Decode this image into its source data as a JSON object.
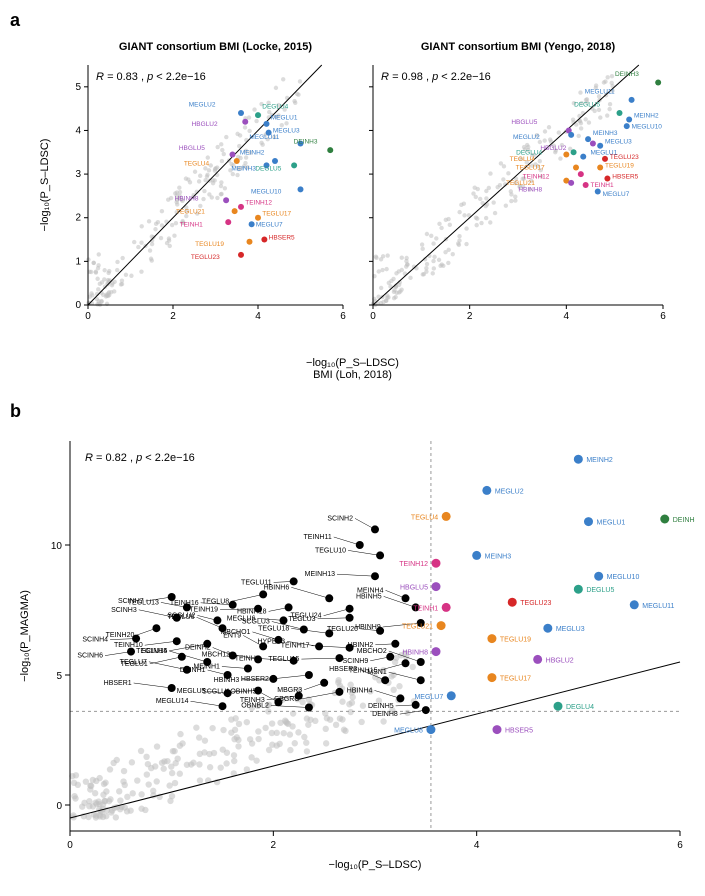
{
  "panel_a": {
    "label": "a",
    "shared_x_label": "BMI (Loh, 2018)",
    "shared_x_axis_math": "−log₁₀(P_S–LDSC)",
    "y_axis_math": "−log₁₀(P_S–LDSC)",
    "left": {
      "title": "GIANT consortium BMI (Locke, 2015)",
      "corr_R": "R = 0.83",
      "corr_p": "p < 2.2e−16",
      "xlim": [
        0,
        6
      ],
      "ylim": [
        0,
        5.5
      ],
      "xticks": [
        0,
        2,
        4,
        6
      ],
      "yticks": [
        0,
        1,
        2,
        3,
        4,
        5
      ],
      "bg_n": 180
    },
    "right": {
      "title": "GIANT consortium BMI (Yengo, 2018)",
      "corr_R": "R = 0.98",
      "corr_p": "p < 2.2e−16",
      "xlim": [
        0,
        6
      ],
      "ylim": [
        0,
        5.5
      ],
      "xticks": [
        0,
        2,
        4,
        6
      ],
      "yticks": [
        0,
        1,
        2,
        3,
        4,
        5
      ],
      "bg_n": 180
    },
    "colors": {
      "DE": "#2f7f3f",
      "ME": "#3b7fc9",
      "HB": "#9b4fbd",
      "TE": "#e8861f",
      "TEINH": "#d63384",
      "HBSER": "#d62728",
      "TEGLU_red": "#d62728"
    },
    "left_points": [
      {
        "l": "MEGLU2",
        "x": 3.6,
        "y": 4.4,
        "c": "#3b7fc9",
        "lx": 3.0,
        "ly": 4.55
      },
      {
        "l": "DEGLU4",
        "x": 4.0,
        "y": 4.35,
        "c": "#2ca089",
        "lx": 4.1,
        "ly": 4.5
      },
      {
        "l": "HBGLU2",
        "x": 3.7,
        "y": 4.2,
        "c": "#9b4fbd",
        "lx": 3.05,
        "ly": 4.1
      },
      {
        "l": "MEGLU1",
        "x": 4.2,
        "y": 4.15,
        "c": "#3b7fc9",
        "lx": 4.3,
        "ly": 4.25
      },
      {
        "l": "MEGLU3",
        "x": 4.25,
        "y": 3.95,
        "c": "#3b7fc9",
        "lx": 4.35,
        "ly": 3.95
      },
      {
        "l": "MEGLU11",
        "x": 5.0,
        "y": 3.7,
        "c": "#3b7fc9",
        "lx": 4.5,
        "ly": 3.8
      },
      {
        "l": "DEINH3",
        "x": 5.7,
        "y": 3.55,
        "c": "#2f7f3f",
        "lx": 5.4,
        "ly": 3.7
      },
      {
        "l": "HBGLU5",
        "x": 3.4,
        "y": 3.45,
        "c": "#9b4fbd",
        "lx": 2.75,
        "ly": 3.55
      },
      {
        "l": "TEGLU4",
        "x": 3.5,
        "y": 3.3,
        "c": "#e8861f",
        "lx": 2.85,
        "ly": 3.2
      },
      {
        "l": "MEINH2",
        "x": 4.4,
        "y": 3.3,
        "c": "#3b7fc9",
        "lx": 4.15,
        "ly": 3.45
      },
      {
        "l": "MEINH3",
        "x": 4.2,
        "y": 3.2,
        "c": "#3b7fc9",
        "lx": 3.95,
        "ly": 3.08
      },
      {
        "l": "DEGLU5",
        "x": 4.85,
        "y": 3.2,
        "c": "#2ca089",
        "lx": 4.55,
        "ly": 3.08
      },
      {
        "l": "MEGLU10",
        "x": 5.0,
        "y": 2.65,
        "c": "#3b7fc9",
        "lx": 4.55,
        "ly": 2.55
      },
      {
        "l": "HBINH8",
        "x": 3.25,
        "y": 2.4,
        "c": "#9b4fbd",
        "lx": 2.6,
        "ly": 2.4
      },
      {
        "l": "TEINH12",
        "x": 3.6,
        "y": 2.25,
        "c": "#d63384",
        "lx": 3.7,
        "ly": 2.3
      },
      {
        "l": "TEGLU21",
        "x": 3.45,
        "y": 2.15,
        "c": "#e8861f",
        "lx": 2.75,
        "ly": 2.1
      },
      {
        "l": "TEGLU17",
        "x": 4.0,
        "y": 2.0,
        "c": "#e8861f",
        "lx": 4.1,
        "ly": 2.05
      },
      {
        "l": "MEGLU7",
        "x": 3.85,
        "y": 1.85,
        "c": "#3b7fc9",
        "lx": 3.95,
        "ly": 1.8
      },
      {
        "l": "TEINH1",
        "x": 3.3,
        "y": 1.9,
        "c": "#d63384",
        "lx": 2.7,
        "ly": 1.8
      },
      {
        "l": "HBSER5",
        "x": 4.15,
        "y": 1.5,
        "c": "#d62728",
        "lx": 4.25,
        "ly": 1.5
      },
      {
        "l": "TEGLU19",
        "x": 3.8,
        "y": 1.45,
        "c": "#e8861f",
        "lx": 3.2,
        "ly": 1.35
      },
      {
        "l": "TEGLU23",
        "x": 3.6,
        "y": 1.15,
        "c": "#d62728",
        "lx": 3.1,
        "ly": 1.05
      }
    ],
    "right_points": [
      {
        "l": "DEINH3",
        "x": 5.9,
        "y": 5.1,
        "c": "#2f7f3f",
        "lx": 5.5,
        "ly": 5.25
      },
      {
        "l": "MEGLU11",
        "x": 5.35,
        "y": 4.7,
        "c": "#3b7fc9",
        "lx": 5.0,
        "ly": 4.85
      },
      {
        "l": "DEGLU5",
        "x": 5.1,
        "y": 4.4,
        "c": "#2ca089",
        "lx": 4.7,
        "ly": 4.55
      },
      {
        "l": "MEINH2",
        "x": 5.3,
        "y": 4.25,
        "c": "#3b7fc9",
        "lx": 5.4,
        "ly": 4.3
      },
      {
        "l": "MEGLU10",
        "x": 5.25,
        "y": 4.1,
        "c": "#3b7fc9",
        "lx": 5.35,
        "ly": 4.05
      },
      {
        "l": "HBGLU5",
        "x": 4.05,
        "y": 4.0,
        "c": "#9b4fbd",
        "lx": 3.4,
        "ly": 4.15
      },
      {
        "l": "MEGLU2",
        "x": 4.1,
        "y": 3.9,
        "c": "#3b7fc9",
        "lx": 3.45,
        "ly": 3.8
      },
      {
        "l": "MEINH3",
        "x": 4.45,
        "y": 3.8,
        "c": "#3b7fc9",
        "lx": 4.55,
        "ly": 3.9
      },
      {
        "l": "HBGLU2",
        "x": 4.55,
        "y": 3.7,
        "c": "#9b4fbd",
        "lx": 4.0,
        "ly": 3.55
      },
      {
        "l": "MEGLU3",
        "x": 4.7,
        "y": 3.65,
        "c": "#3b7fc9",
        "lx": 4.8,
        "ly": 3.7
      },
      {
        "l": "DEGLU4",
        "x": 4.15,
        "y": 3.5,
        "c": "#2ca089",
        "lx": 3.5,
        "ly": 3.45
      },
      {
        "l": "TEGLU4",
        "x": 4.0,
        "y": 3.45,
        "c": "#e8861f",
        "lx": 3.35,
        "ly": 3.3
      },
      {
        "l": "MEGLU1",
        "x": 4.35,
        "y": 3.4,
        "c": "#3b7fc9",
        "lx": 4.5,
        "ly": 3.45
      },
      {
        "l": "TEGLU23",
        "x": 4.8,
        "y": 3.35,
        "c": "#d62728",
        "lx": 4.9,
        "ly": 3.35
      },
      {
        "l": "TEGLU17",
        "x": 4.2,
        "y": 3.15,
        "c": "#e8861f",
        "lx": 3.55,
        "ly": 3.1
      },
      {
        "l": "TEGLU19",
        "x": 4.7,
        "y": 3.15,
        "c": "#e8861f",
        "lx": 4.8,
        "ly": 3.15
      },
      {
        "l": "TEINH12",
        "x": 4.3,
        "y": 3.0,
        "c": "#d63384",
        "lx": 3.65,
        "ly": 2.9
      },
      {
        "l": "HBSER5",
        "x": 4.85,
        "y": 2.9,
        "c": "#d62728",
        "lx": 4.95,
        "ly": 2.9
      },
      {
        "l": "TEGLU21",
        "x": 4.0,
        "y": 2.85,
        "c": "#e8861f",
        "lx": 3.35,
        "ly": 2.75
      },
      {
        "l": "HBINH8",
        "x": 4.1,
        "y": 2.8,
        "c": "#9b4fbd",
        "lx": 3.5,
        "ly": 2.6
      },
      {
        "l": "TEINH1",
        "x": 4.4,
        "y": 2.75,
        "c": "#d63384",
        "lx": 4.5,
        "ly": 2.7
      },
      {
        "l": "MEGLU7",
        "x": 4.65,
        "y": 2.6,
        "c": "#3b7fc9",
        "lx": 4.75,
        "ly": 2.5
      }
    ]
  },
  "panel_b": {
    "label": "b",
    "x_axis_math": "−log₁₀(P_S–LDSC)",
    "y_axis_math": "−log₁₀(P_MAGMA)",
    "corr_R": "R = 0.82",
    "corr_p": "p < 2.2e−16",
    "xlim": [
      0,
      6
    ],
    "ylim": [
      -1,
      14
    ],
    "xticks": [
      0,
      2,
      4,
      6
    ],
    "yticks": [
      0,
      5,
      10
    ],
    "vthresh": 3.55,
    "hthresh": 3.6,
    "bg_n": 200,
    "colored_points": [
      {
        "l": "MEINH2",
        "x": 5.0,
        "y": 13.3,
        "c": "#3b7fc9",
        "lp": "r"
      },
      {
        "l": "MEGLU2",
        "x": 4.1,
        "y": 12.1,
        "c": "#3b7fc9",
        "lp": "r"
      },
      {
        "l": "DEINH3",
        "x": 5.85,
        "y": 11.0,
        "c": "#2f7f3f",
        "lp": "r"
      },
      {
        "l": "TEGLU4",
        "x": 3.7,
        "y": 11.1,
        "c": "#e8861f",
        "lp": "l"
      },
      {
        "l": "MEGLU1",
        "x": 5.1,
        "y": 10.9,
        "c": "#3b7fc9",
        "lp": "r"
      },
      {
        "l": "MEINH3",
        "x": 4.0,
        "y": 9.6,
        "c": "#3b7fc9",
        "lp": "r"
      },
      {
        "l": "TEINH12",
        "x": 3.6,
        "y": 9.3,
        "c": "#d63384",
        "lp": "l"
      },
      {
        "l": "MEGLU10",
        "x": 5.2,
        "y": 8.8,
        "c": "#3b7fc9",
        "lp": "r"
      },
      {
        "l": "DEGLU5",
        "x": 5.0,
        "y": 8.3,
        "c": "#2ca089",
        "lp": "r"
      },
      {
        "l": "HBGLU5",
        "x": 3.6,
        "y": 8.4,
        "c": "#9b4fbd",
        "lp": "l"
      },
      {
        "l": "MEGLU11",
        "x": 5.55,
        "y": 7.7,
        "c": "#3b7fc9",
        "lp": "r"
      },
      {
        "l": "TEGLU23",
        "x": 4.35,
        "y": 7.8,
        "c": "#d62728",
        "lp": "r"
      },
      {
        "l": "TEINH1",
        "x": 3.7,
        "y": 7.6,
        "c": "#d63384",
        "lp": "l"
      },
      {
        "l": "TEGLU21",
        "x": 3.65,
        "y": 6.9,
        "c": "#e8861f",
        "lp": "l"
      },
      {
        "l": "MEGLU3",
        "x": 4.7,
        "y": 6.8,
        "c": "#3b7fc9",
        "lp": "r"
      },
      {
        "l": "TEGLU19",
        "x": 4.15,
        "y": 6.4,
        "c": "#e8861f",
        "lp": "r"
      },
      {
        "l": "HBINH8",
        "x": 3.6,
        "y": 5.9,
        "c": "#9b4fbd",
        "lp": "l"
      },
      {
        "l": "HBGLU2",
        "x": 4.6,
        "y": 5.6,
        "c": "#9b4fbd",
        "lp": "r"
      },
      {
        "l": "TEGLU17",
        "x": 4.15,
        "y": 4.9,
        "c": "#e8861f",
        "lp": "r"
      },
      {
        "l": "MEGLU7",
        "x": 3.75,
        "y": 4.2,
        "c": "#3b7fc9",
        "lp": "l"
      },
      {
        "l": "DEGLU4",
        "x": 4.8,
        "y": 3.8,
        "c": "#2ca089",
        "lp": "r"
      },
      {
        "l": "HBSER5",
        "x": 4.2,
        "y": 2.9,
        "c": "#9b4fbd",
        "lp": "r"
      },
      {
        "l": "MEGLU8",
        "x": 3.55,
        "y": 2.9,
        "c": "#3b7fc9",
        "lp": "l"
      }
    ],
    "black_points": [
      {
        "l": "SCINH2",
        "x": 3.0,
        "y": 10.6
      },
      {
        "l": "TEINH11",
        "x": 2.85,
        "y": 10.0
      },
      {
        "l": "TEGLU10",
        "x": 3.05,
        "y": 9.6
      },
      {
        "l": "MEINH13",
        "x": 3.0,
        "y": 8.8
      },
      {
        "l": "TEGLU11",
        "x": 2.2,
        "y": 8.6
      },
      {
        "l": "SCINH7",
        "x": 1.0,
        "y": 8.0
      },
      {
        "l": "TEGLU8",
        "x": 1.9,
        "y": 8.1
      },
      {
        "l": "HBINH6",
        "x": 2.55,
        "y": 7.95
      },
      {
        "l": "MEINH4",
        "x": 3.3,
        "y": 7.95
      },
      {
        "l": "TEGLU13",
        "x": 1.15,
        "y": 7.6
      },
      {
        "l": "TEINH16",
        "x": 1.6,
        "y": 7.7
      },
      {
        "l": "TEINH19",
        "x": 1.85,
        "y": 7.55
      },
      {
        "l": "HBINH18",
        "x": 2.15,
        "y": 7.6
      },
      {
        "l": "TEGLU24",
        "x": 2.75,
        "y": 7.55
      },
      {
        "l": "HBINH5",
        "x": 3.4,
        "y": 7.6
      },
      {
        "l": "SCINH3",
        "x": 1.05,
        "y": 7.2
      },
      {
        "l": "SCGLU2",
        "x": 1.45,
        "y": 7.1
      },
      {
        "l": "MEGLU6",
        "x": 2.1,
        "y": 7.1
      },
      {
        "l": "TEGLU3",
        "x": 2.75,
        "y": 7.2
      },
      {
        "l": "HBINH9",
        "x": 3.45,
        "y": 7.0
      },
      {
        "l": "TEINH20",
        "x": 0.85,
        "y": 6.8
      },
      {
        "l": "TEGLU6",
        "x": 1.5,
        "y": 6.8
      },
      {
        "l": "SCGLU3",
        "x": 2.3,
        "y": 6.75
      },
      {
        "l": "TEGLU18",
        "x": 2.55,
        "y": 6.6
      },
      {
        "l": "TEGLU20",
        "x": 3.05,
        "y": 6.7
      },
      {
        "l": "SCINH4",
        "x": 0.65,
        "y": 6.4
      },
      {
        "l": "TEINH10",
        "x": 1.05,
        "y": 6.3
      },
      {
        "l": "SCINH5",
        "x": 1.35,
        "y": 6.2
      },
      {
        "l": "ENT9",
        "x": 1.9,
        "y": 6.1
      },
      {
        "l": "MBCHO1",
        "x": 2.05,
        "y": 6.35
      },
      {
        "l": "HYPEP3",
        "x": 2.45,
        "y": 6.1
      },
      {
        "l": "TEINH17",
        "x": 2.75,
        "y": 6.05
      },
      {
        "l": "HBINH2",
        "x": 3.2,
        "y": 6.2
      },
      {
        "l": "SCINH6",
        "x": 0.6,
        "y": 5.9
      },
      {
        "l": "TEGLU1",
        "x": 1.1,
        "y": 5.7
      },
      {
        "l": "TEGLU14",
        "x": 1.35,
        "y": 5.5
      },
      {
        "l": "DEINH2",
        "x": 1.6,
        "y": 5.75
      },
      {
        "l": "MBCH12",
        "x": 1.85,
        "y": 5.6
      },
      {
        "l": "TEINH2",
        "x": 2.2,
        "y": 5.55
      },
      {
        "l": "TEGLU15",
        "x": 2.65,
        "y": 5.65
      },
      {
        "l": "SCINH9",
        "x": 3.15,
        "y": 5.7
      },
      {
        "l": "TEINH15",
        "x": 3.3,
        "y": 5.45
      },
      {
        "l": "MBCHO2",
        "x": 3.45,
        "y": 5.5
      },
      {
        "l": "TEGLU7",
        "x": 1.15,
        "y": 5.2
      },
      {
        "l": "DEINH1",
        "x": 1.55,
        "y": 5.0
      },
      {
        "l": "MEINH1",
        "x": 1.75,
        "y": 5.25
      },
      {
        "l": "HBINH3",
        "x": 2.0,
        "y": 4.85
      },
      {
        "l": "HBSER2",
        "x": 2.35,
        "y": 5.0
      },
      {
        "l": "MBGR3",
        "x": 2.5,
        "y": 4.7
      },
      {
        "l": "HBSER3",
        "x": 3.1,
        "y": 4.8
      },
      {
        "l": "MSN1",
        "x": 3.45,
        "y": 4.8
      },
      {
        "l": "HBSER1",
        "x": 1.0,
        "y": 4.5
      },
      {
        "l": "MEGLU5",
        "x": 1.55,
        "y": 4.3
      },
      {
        "l": "SCGLU1",
        "x": 1.85,
        "y": 4.4
      },
      {
        "l": "TEINH3",
        "x": 2.25,
        "y": 4.2
      },
      {
        "l": "CBGRC",
        "x": 2.65,
        "y": 4.35
      },
      {
        "l": "OBINH5",
        "x": 2.05,
        "y": 3.95
      },
      {
        "l": "HBINH4",
        "x": 3.25,
        "y": 4.1
      },
      {
        "l": "MEGLU14",
        "x": 1.5,
        "y": 3.8
      },
      {
        "l": "OBNBL2",
        "x": 2.35,
        "y": 3.75
      },
      {
        "l": "DEINH5",
        "x": 3.4,
        "y": 3.85
      },
      {
        "l": "DEINH8",
        "x": 3.5,
        "y": 3.65
      }
    ]
  }
}
